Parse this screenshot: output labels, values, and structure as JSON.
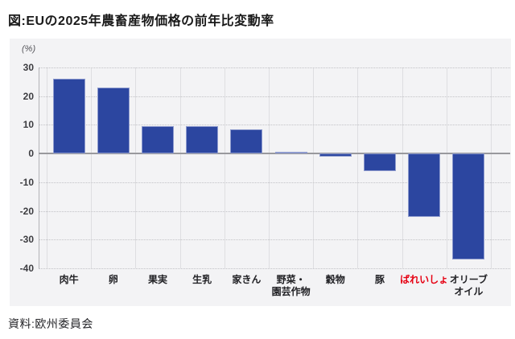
{
  "title": "図:EUの2025年農畜産物価格の前年比変動率",
  "source": "資料:欧州委員会",
  "chart_data": {
    "type": "bar",
    "title": "図:EUの2025年農畜産物価格の前年比変動率",
    "unit_label": "(%)",
    "xlabel": "",
    "ylabel": "(%)",
    "categories": [
      "肉牛",
      "卵",
      "果実",
      "生乳",
      "家きん",
      "野菜・園芸作物",
      "穀物",
      "豚",
      "ばれいしょ",
      "オリーブオイル"
    ],
    "category_lines": [
      [
        "肉牛"
      ],
      [
        "卵"
      ],
      [
        "果実"
      ],
      [
        "生乳"
      ],
      [
        "家きん"
      ],
      [
        "野菜・",
        "園芸作物"
      ],
      [
        "穀物"
      ],
      [
        "豚"
      ],
      [
        "ばれいしょ"
      ],
      [
        "オリーブ",
        "オイル"
      ]
    ],
    "values": [
      26,
      23,
      9.5,
      9.5,
      8.5,
      0.5,
      -1,
      -6,
      -22,
      -37
    ],
    "ylim": [
      -40,
      30
    ],
    "yticks": [
      30,
      20,
      10,
      0,
      -10,
      -20,
      -30,
      -40
    ],
    "grid": true,
    "legend": false,
    "bar_color": "#2c46a0",
    "highlight_index": 8,
    "highlight_label_color": "#e60012",
    "panel_background": "#f3f3f5"
  }
}
